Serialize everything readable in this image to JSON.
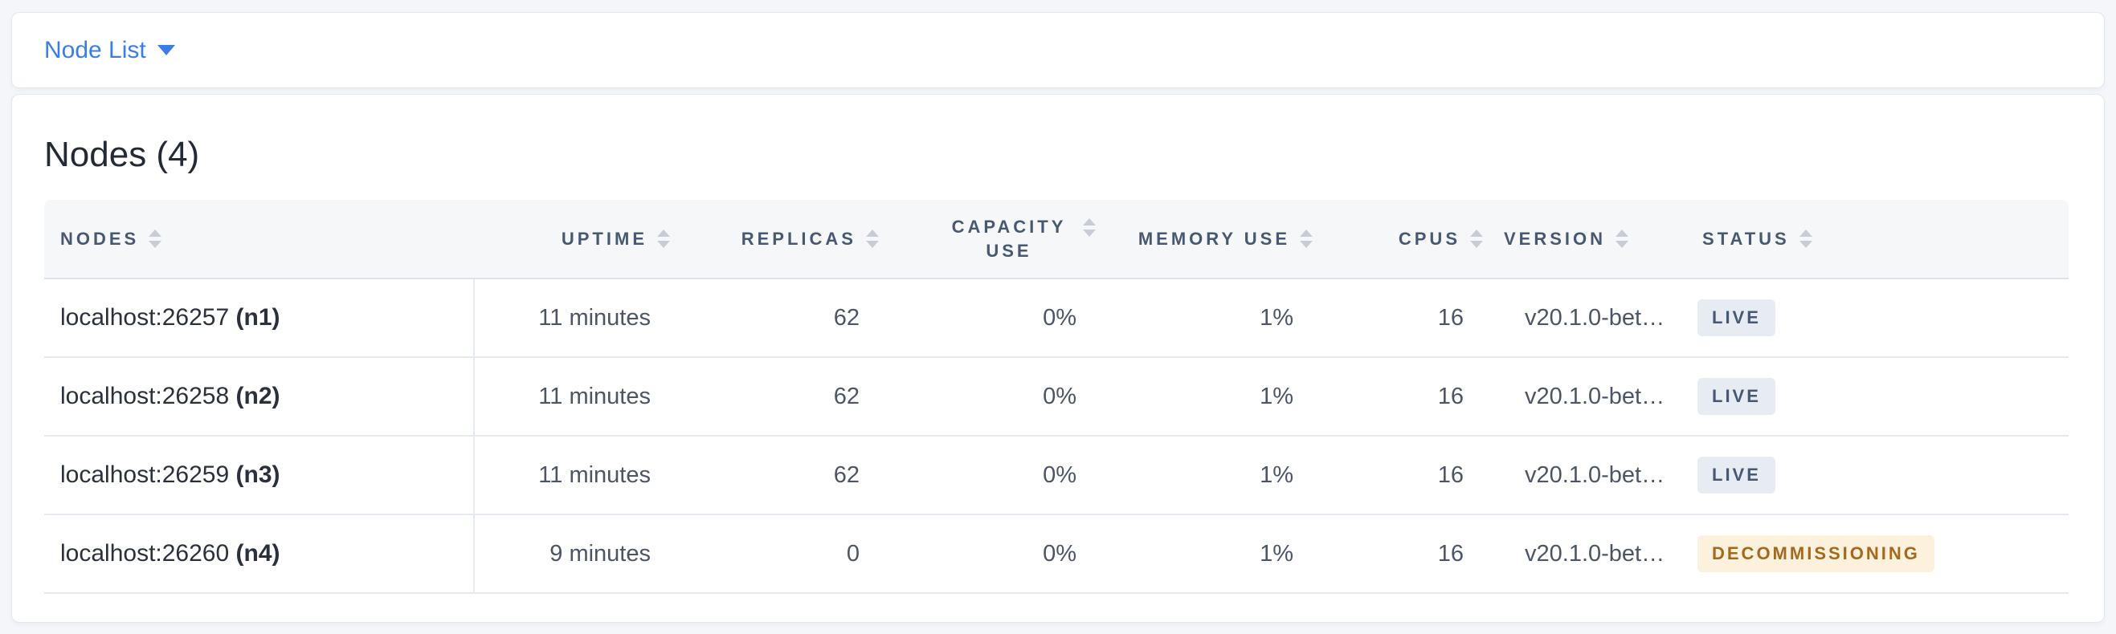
{
  "nav": {
    "dropdown_label": "Node List",
    "caret_icon": "caret-down-icon"
  },
  "main": {
    "title": "Nodes (4)",
    "table": {
      "columns": [
        {
          "label": "NODES",
          "align": "left",
          "sortable": true
        },
        {
          "label": "UPTIME",
          "align": "right",
          "sortable": true
        },
        {
          "label": "REPLICAS",
          "align": "right",
          "sortable": true
        },
        {
          "label": "CAPACITY USE",
          "align": "right",
          "sortable": true,
          "wrap": true
        },
        {
          "label": "MEMORY USE",
          "align": "right",
          "sortable": true
        },
        {
          "label": "CPUS",
          "align": "right",
          "sortable": true
        },
        {
          "label": "VERSION",
          "align": "left",
          "sortable": true
        },
        {
          "label": "STATUS",
          "align": "left",
          "sortable": true
        }
      ],
      "rows": [
        {
          "node": "localhost:26257",
          "node_id": "(n1)",
          "uptime": "11 minutes",
          "replicas": "62",
          "capacity_use": "0%",
          "memory_use": "1%",
          "cpus": "16",
          "version": "v20.1.0-bet…",
          "status": "LIVE",
          "status_type": "live"
        },
        {
          "node": "localhost:26258",
          "node_id": "(n2)",
          "uptime": "11 minutes",
          "replicas": "62",
          "capacity_use": "0%",
          "memory_use": "1%",
          "cpus": "16",
          "version": "v20.1.0-bet…",
          "status": "LIVE",
          "status_type": "live"
        },
        {
          "node": "localhost:26259",
          "node_id": "(n3)",
          "uptime": "11 minutes",
          "replicas": "62",
          "capacity_use": "0%",
          "memory_use": "1%",
          "cpus": "16",
          "version": "v20.1.0-bet…",
          "status": "LIVE",
          "status_type": "live"
        },
        {
          "node": "localhost:26260",
          "node_id": "(n4)",
          "uptime": "9 minutes",
          "replicas": "0",
          "capacity_use": "0%",
          "memory_use": "1%",
          "cpus": "16",
          "version": "v20.1.0-bet…",
          "status": "DECOMMISSIONING",
          "status_type": "decommissioning"
        }
      ]
    }
  },
  "colors": {
    "accent_blue": "#3a7de4",
    "live_badge_bg": "#e7ecf3",
    "live_badge_text": "#475872",
    "decommissioning_badge_bg": "#fbf1dc",
    "decommissioning_badge_text": "#a5691c",
    "header_text": "#475872",
    "page_bg": "#f4f6fa"
  }
}
